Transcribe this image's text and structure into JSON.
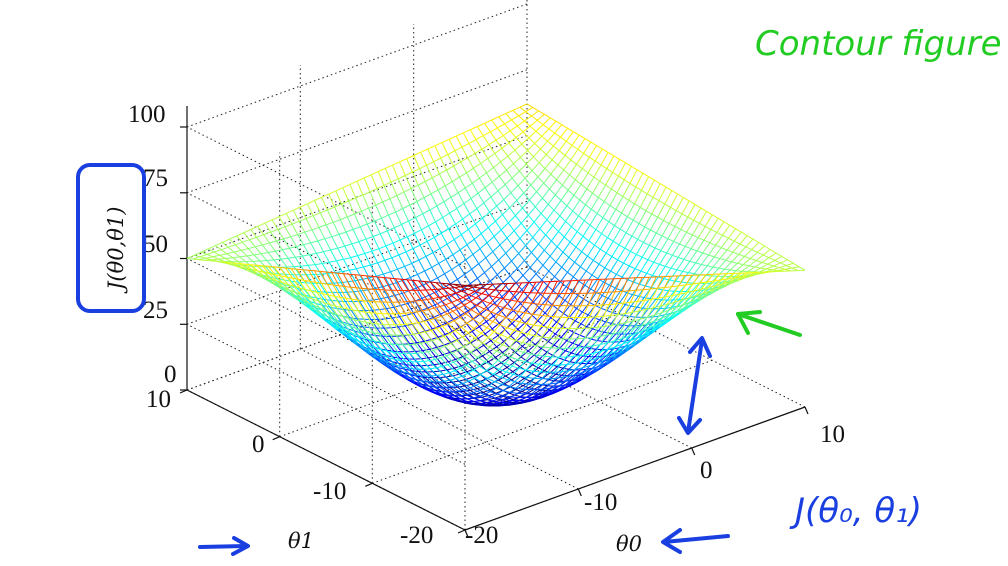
{
  "chart_data": {
    "type": "surface",
    "z_label": "J(θ0,θ1)",
    "x_label": "θ0",
    "y_label": "θ1",
    "x_range": [
      -20,
      10
    ],
    "y_range": [
      -20,
      10
    ],
    "z_range": [
      0,
      100
    ],
    "x_ticks": [
      "-20",
      "-10",
      "0",
      "10"
    ],
    "y_ticks": [
      "-20",
      "-10",
      "0",
      "10"
    ],
    "z_ticks": [
      "0",
      "25",
      "50",
      "75",
      "100"
    ],
    "surface_corners": {
      "theta0_10_theta1_10": 62,
      "theta0_-20_theta1_-20": 93,
      "theta0_-20_theta1_10": 50,
      "theta0_10_theta1_-20": 52
    },
    "minimum_value": 2,
    "colormap": "jet",
    "grid": true
  },
  "annotations": {
    "contour_note": "Contour figure",
    "cost_label": "J(θ₀, θ₁)"
  },
  "colors": {
    "note_green": "#22cc22",
    "pen_blue": "#1a3fe0"
  }
}
